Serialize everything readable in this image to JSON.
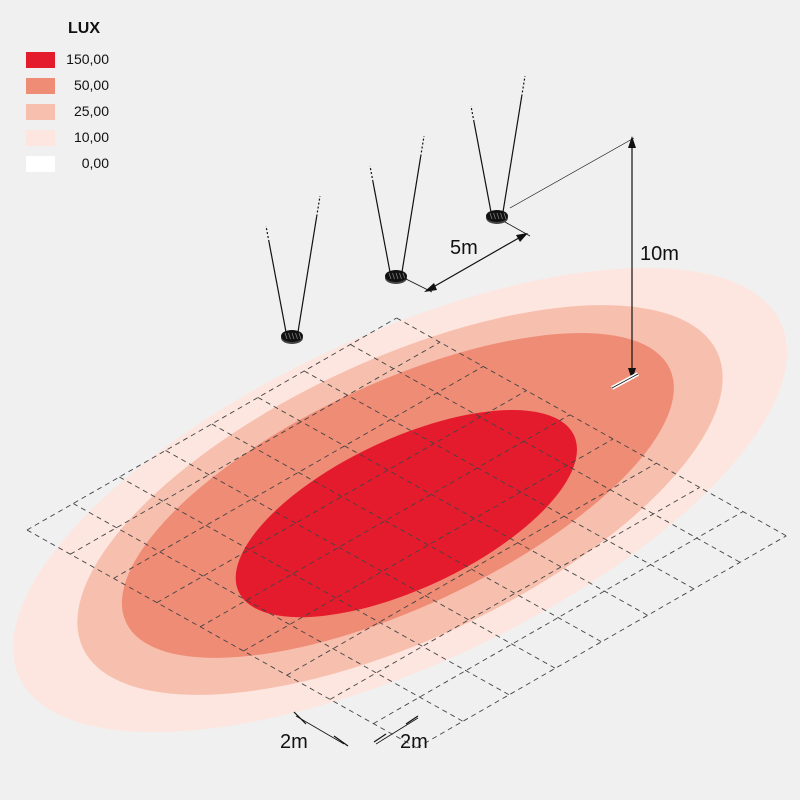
{
  "legend": {
    "title": "LUX",
    "items": [
      {
        "value": "150,00",
        "color": "#e41b2d"
      },
      {
        "value": "50,00",
        "color": "#ef8c76"
      },
      {
        "value": "25,00",
        "color": "#f7c0ae"
      },
      {
        "value": "10,00",
        "color": "#fde6df"
      },
      {
        "value": "0,00",
        "color": "#ffffff"
      }
    ]
  },
  "dimensions": {
    "spacing": "5m",
    "height": "10m",
    "grid_a": "2m",
    "grid_b": "2m"
  },
  "luminaire_count": 3
}
